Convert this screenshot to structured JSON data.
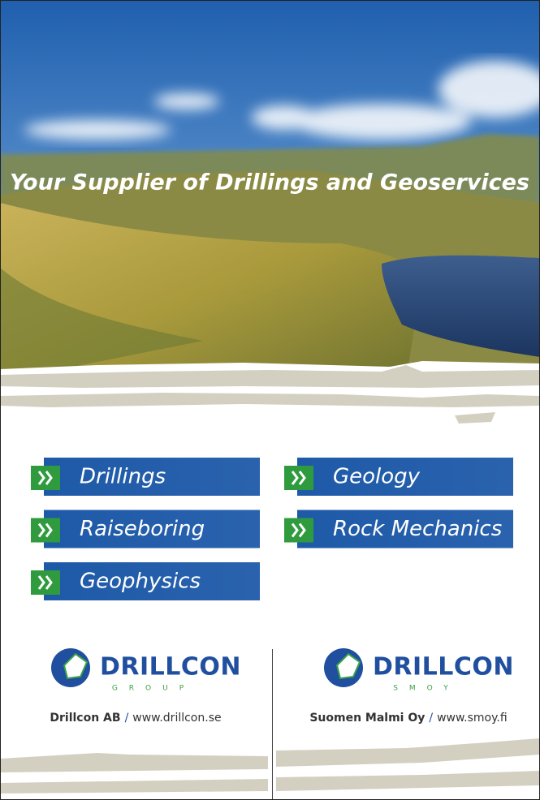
{
  "tagline": "Your Supplier of Drillings and Geoservices",
  "services": [
    "Drillings",
    "Geology",
    "Raiseboring",
    "Rock Mechanics",
    "Geophysics"
  ],
  "companies": [
    {
      "brand": "DRILLCON",
      "sub": "GROUP",
      "name": "Drillcon AB",
      "separator": "/",
      "url": "www.drillcon.se"
    },
    {
      "brand": "DRILLCON",
      "sub": "SMOY",
      "name": "Suomen Malmi Oy",
      "separator": "/",
      "url": "www.smoy.fi"
    }
  ]
}
